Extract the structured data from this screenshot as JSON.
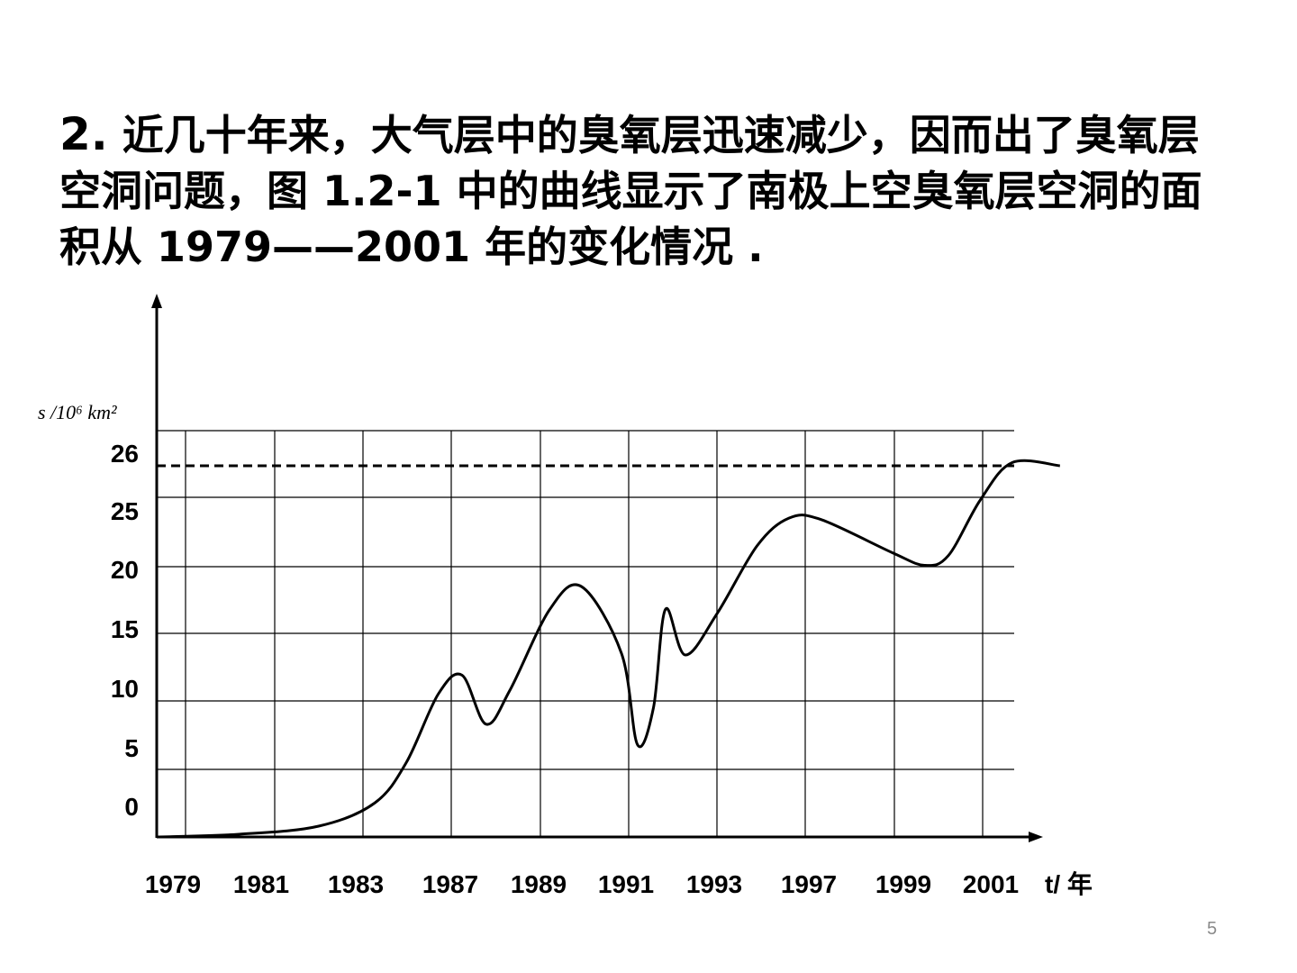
{
  "slide": {
    "title_number": "2.",
    "title_text": " 近几十年来，大气层中的臭氧层迅速减少，因而出了臭氧层空洞问题，图 1.2-1 中的曲线显示了南极上空臭氧层空洞的面积从 1979——2001 年的变化情况 .",
    "page_number": "5"
  },
  "chart_data": {
    "type": "line",
    "title": "",
    "ylabel": "s /10⁶ km²",
    "xlabel": "t/ 年",
    "x_tick_labels": [
      "1979",
      "1981",
      "1983",
      "1987",
      "1989",
      "1991",
      "1993",
      "1997",
      "1999",
      "2001"
    ],
    "y_tick_labels": [
      "0",
      "5",
      "10",
      "15",
      "20",
      "25",
      "26"
    ],
    "grid": true,
    "dashed_reference": {
      "value": 26
    },
    "series": [
      {
        "points": [
          [
            0,
            0
          ],
          [
            1,
            0.2
          ],
          [
            2,
            0.8
          ],
          [
            2.7,
            2.5
          ],
          [
            3.1,
            5.5
          ],
          [
            3.5,
            10.5
          ],
          [
            3.8,
            11.9
          ],
          [
            4.1,
            8.3
          ],
          [
            4.4,
            10.8
          ],
          [
            4.9,
            16.8
          ],
          [
            5.3,
            18.5
          ],
          [
            5.8,
            13.5
          ],
          [
            6.0,
            6.8
          ],
          [
            6.2,
            9.5
          ],
          [
            6.35,
            16.8
          ],
          [
            6.6,
            13.4
          ],
          [
            7.0,
            16.5
          ],
          [
            7.5,
            21.5
          ],
          [
            7.9,
            23.5
          ],
          [
            8.3,
            23.4
          ],
          [
            9.2,
            21.0
          ],
          [
            9.6,
            20.1
          ],
          [
            9.9,
            20.8
          ],
          [
            10.3,
            24.8
          ],
          [
            10.7,
            26.1
          ],
          [
            11.3,
            26.0
          ]
        ]
      }
    ]
  }
}
